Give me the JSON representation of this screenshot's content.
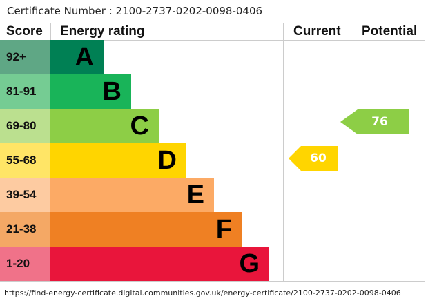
{
  "certificate_number": "Certificate Number : 2100-2737-0202-0098-0406",
  "headers": {
    "score": "Score",
    "rating": "Energy rating",
    "current": "Current",
    "potential": "Potential"
  },
  "chart_data": {
    "type": "bar",
    "bands": [
      {
        "score": "92+",
        "letter": "A",
        "color": "#008054",
        "score_color": "#5fa785"
      },
      {
        "score": "81-91",
        "letter": "B",
        "color": "#19b459",
        "score_color": "#75cc93"
      },
      {
        "score": "69-80",
        "letter": "C",
        "color": "#8dce46",
        "score_color": "#bbe08f"
      },
      {
        "score": "55-68",
        "letter": "D",
        "color": "#ffd500",
        "score_color": "#ffe566"
      },
      {
        "score": "39-54",
        "letter": "E",
        "color": "#fcaa65",
        "score_color": "#fdcba1"
      },
      {
        "score": "21-38",
        "letter": "F",
        "color": "#ef8023",
        "score_color": "#f4a865"
      },
      {
        "score": "1-20",
        "letter": "G",
        "color": "#e9153b",
        "score_color": "#f07289"
      }
    ],
    "current": {
      "value": "60",
      "band": "D",
      "color": "#ffd500"
    },
    "potential": {
      "value": "76",
      "band": "C",
      "color": "#8dce46"
    }
  },
  "url": "https://find-energy-certificate.digital.communities.gov.uk/energy-certificate/2100-2737-0202-0098-0406"
}
